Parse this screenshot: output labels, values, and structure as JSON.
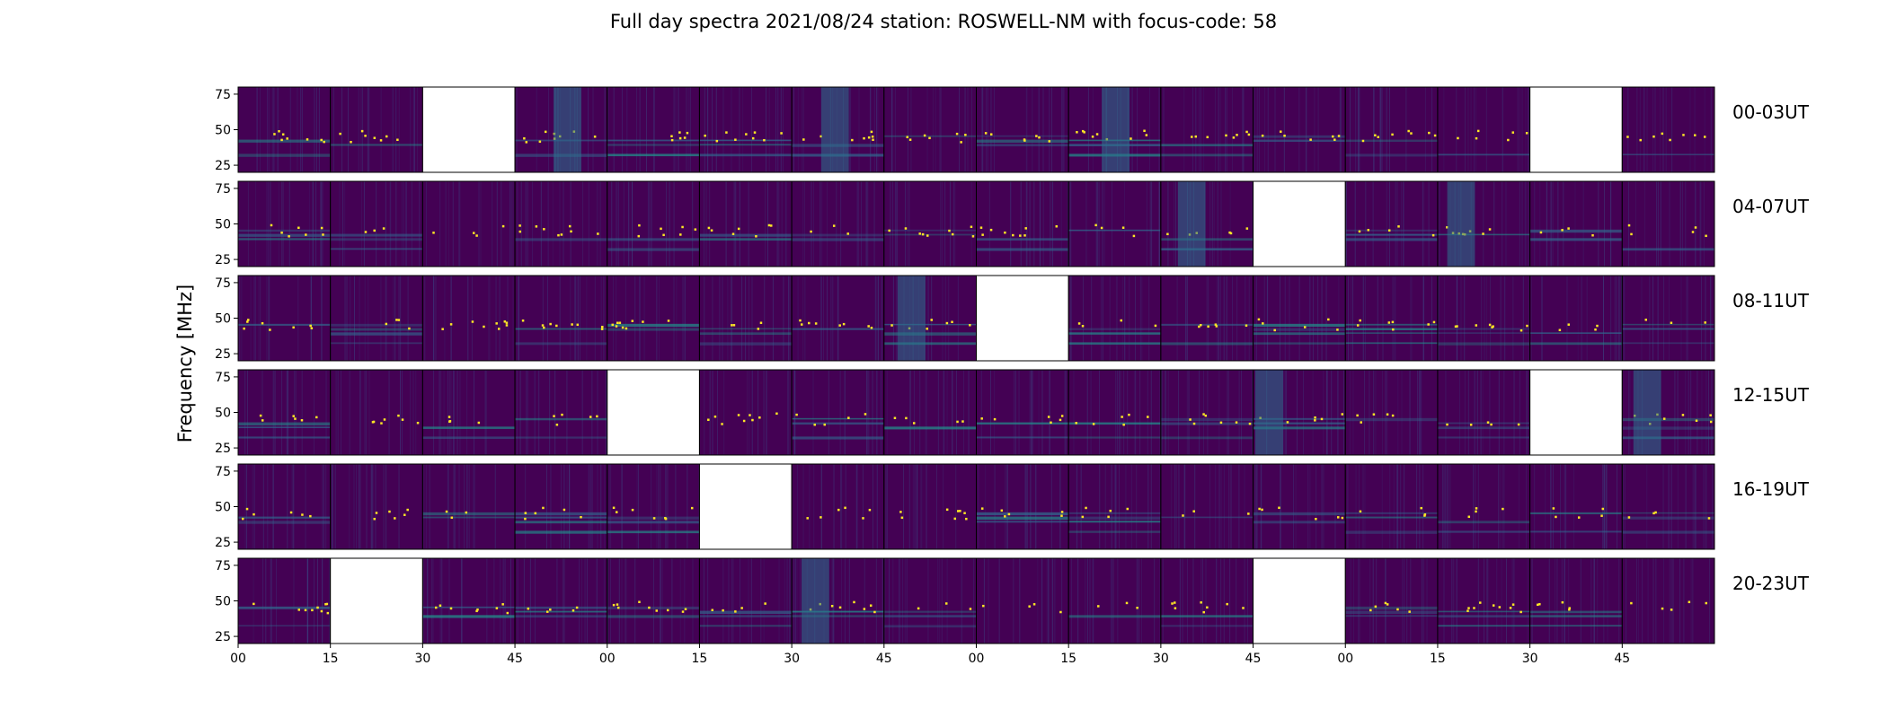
{
  "chart_data": {
    "type": "heatmap",
    "title": "Full day spectra 2021/08/24 station: ROSWELL-NM with focus-code: 58",
    "ylabel": "Frequency [MHz]",
    "xlabel": "",
    "ylim": [
      20,
      80
    ],
    "y_ticks": [
      "25",
      "50",
      "75"
    ],
    "x_ticks": [
      "00",
      "15",
      "30",
      "45",
      "00",
      "15",
      "30",
      "45",
      "00",
      "15",
      "30",
      "45",
      "00",
      "15",
      "30",
      "45"
    ],
    "colormap": "viridis",
    "colors": {
      "background": "#440154",
      "mid": "#21918c",
      "high": "#fde725"
    },
    "rows": [
      {
        "label": "00-03UT",
        "panels": [
          "data",
          "data",
          "missing",
          "data",
          "data",
          "data",
          "data",
          "data",
          "data",
          "data",
          "data",
          "data",
          "data",
          "data",
          "missing",
          "data"
        ]
      },
      {
        "label": "04-07UT",
        "panels": [
          "data",
          "data",
          "data",
          "data",
          "data",
          "data",
          "data",
          "data",
          "data",
          "data",
          "data",
          "missing",
          "data",
          "data",
          "data",
          "data"
        ]
      },
      {
        "label": "08-11UT",
        "panels": [
          "data",
          "data",
          "data",
          "data",
          "data",
          "data",
          "data",
          "data",
          "missing",
          "data",
          "data",
          "data",
          "data",
          "data",
          "data",
          "data"
        ]
      },
      {
        "label": "12-15UT",
        "panels": [
          "data",
          "data",
          "data",
          "data",
          "missing",
          "data",
          "data",
          "data",
          "data",
          "data",
          "data",
          "data",
          "data",
          "data",
          "missing",
          "data"
        ]
      },
      {
        "label": "16-19UT",
        "panels": [
          "data",
          "data",
          "data",
          "data",
          "data",
          "missing",
          "data",
          "data",
          "data",
          "data",
          "data",
          "data",
          "data",
          "data",
          "data",
          "data"
        ]
      },
      {
        "label": "20-23UT",
        "panels": [
          "data",
          "missing",
          "data",
          "data",
          "data",
          "data",
          "data",
          "data",
          "data",
          "data",
          "data",
          "missing",
          "data",
          "data",
          "data",
          "data"
        ]
      }
    ]
  }
}
